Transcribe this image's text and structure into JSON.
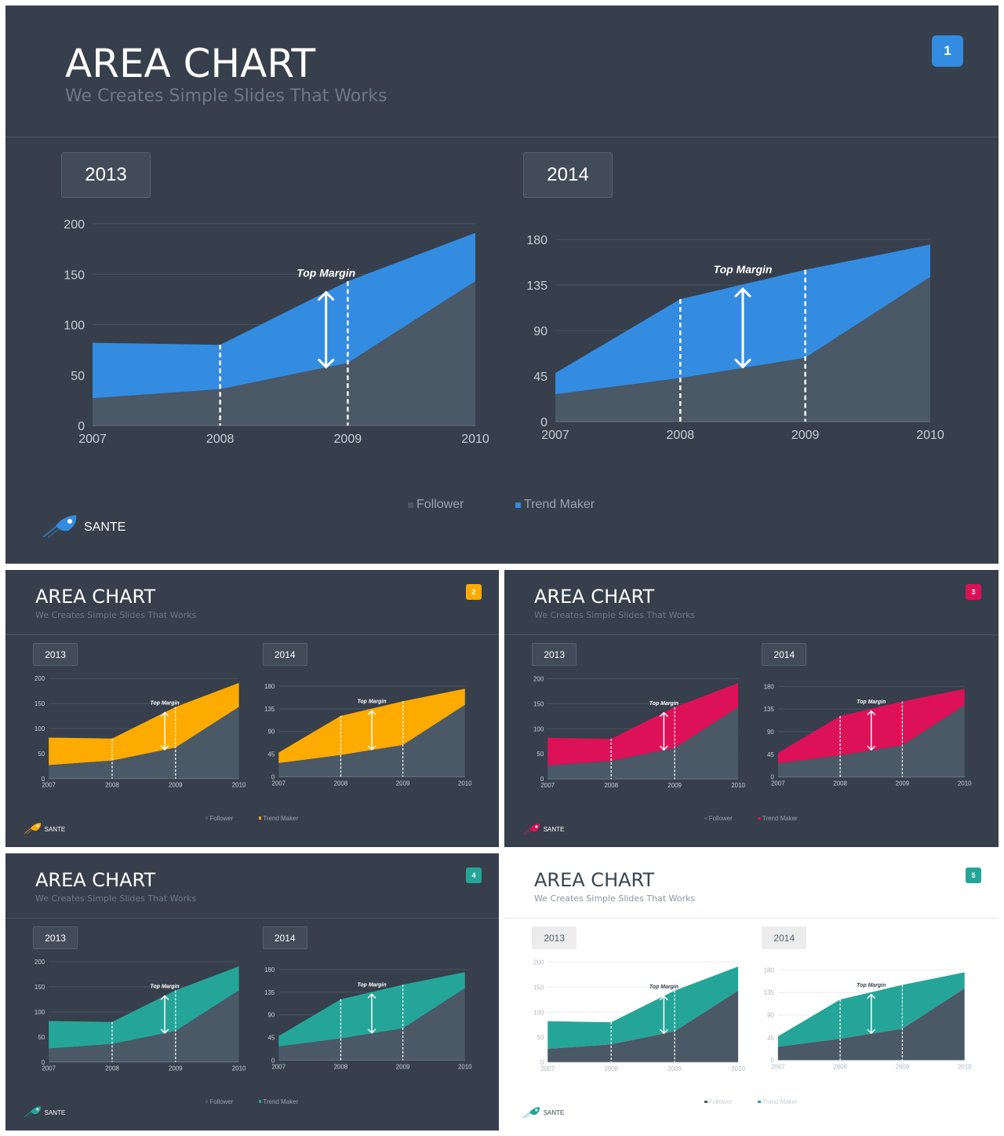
{
  "title": "AREA CHART",
  "subtitle": "We Creates Simple Slides That Works",
  "brand": "SANTE",
  "annotation": "Top Margin",
  "legend": [
    "Follower",
    "Trend Maker"
  ],
  "colors": {
    "background_dark": "#363f4b",
    "follower": "#4b5866",
    "blue": "#338ce0",
    "orange": "#fdab00",
    "pink": "#dd1158",
    "teal": "#25a598"
  },
  "slides": [
    {
      "number": "1",
      "theme": "dark",
      "accent": "#338ce0"
    },
    {
      "number": "2",
      "theme": "dark",
      "accent": "#fdab00"
    },
    {
      "number": "3",
      "theme": "dark",
      "accent": "#dd1158"
    },
    {
      "number": "4",
      "theme": "dark",
      "accent": "#25a598"
    },
    {
      "number": "5",
      "theme": "light",
      "accent": "#25a598"
    }
  ],
  "chart_data": [
    {
      "type": "area",
      "title": "2013",
      "categories": [
        "2007",
        "2008",
        "2009",
        "2010"
      ],
      "ylim": [
        0,
        200
      ],
      "yticks": [
        0,
        50,
        100,
        150,
        200
      ],
      "series": [
        {
          "name": "Follower",
          "values": [
            27,
            36,
            62,
            143
          ]
        },
        {
          "name": "Trend Maker",
          "values": [
            82,
            80,
            143,
            191
          ]
        }
      ],
      "markers": [
        {
          "x": 1,
          "label": ""
        },
        {
          "x": 2,
          "label": ""
        }
      ],
      "annotation": {
        "text": "Top Margin",
        "x": 1.83,
        "from": 58,
        "to": 132
      },
      "grid": true,
      "legend": "bottom"
    },
    {
      "type": "area",
      "title": "2014",
      "categories": [
        "2007",
        "2008",
        "2009",
        "2010"
      ],
      "ylim": [
        0,
        180
      ],
      "yticks": [
        0,
        45,
        90,
        135,
        180
      ],
      "series": [
        {
          "name": "Follower",
          "values": [
            27,
            43,
            63,
            143
          ]
        },
        {
          "name": "Trend Maker",
          "values": [
            48,
            121,
            150,
            175
          ]
        }
      ],
      "markers": [
        {
          "x": 1,
          "label": ""
        },
        {
          "x": 2,
          "label": ""
        }
      ],
      "annotation": {
        "text": "Top Margin",
        "x": 1.5,
        "from": 54,
        "to": 131
      },
      "grid": true,
      "legend": "bottom"
    }
  ]
}
